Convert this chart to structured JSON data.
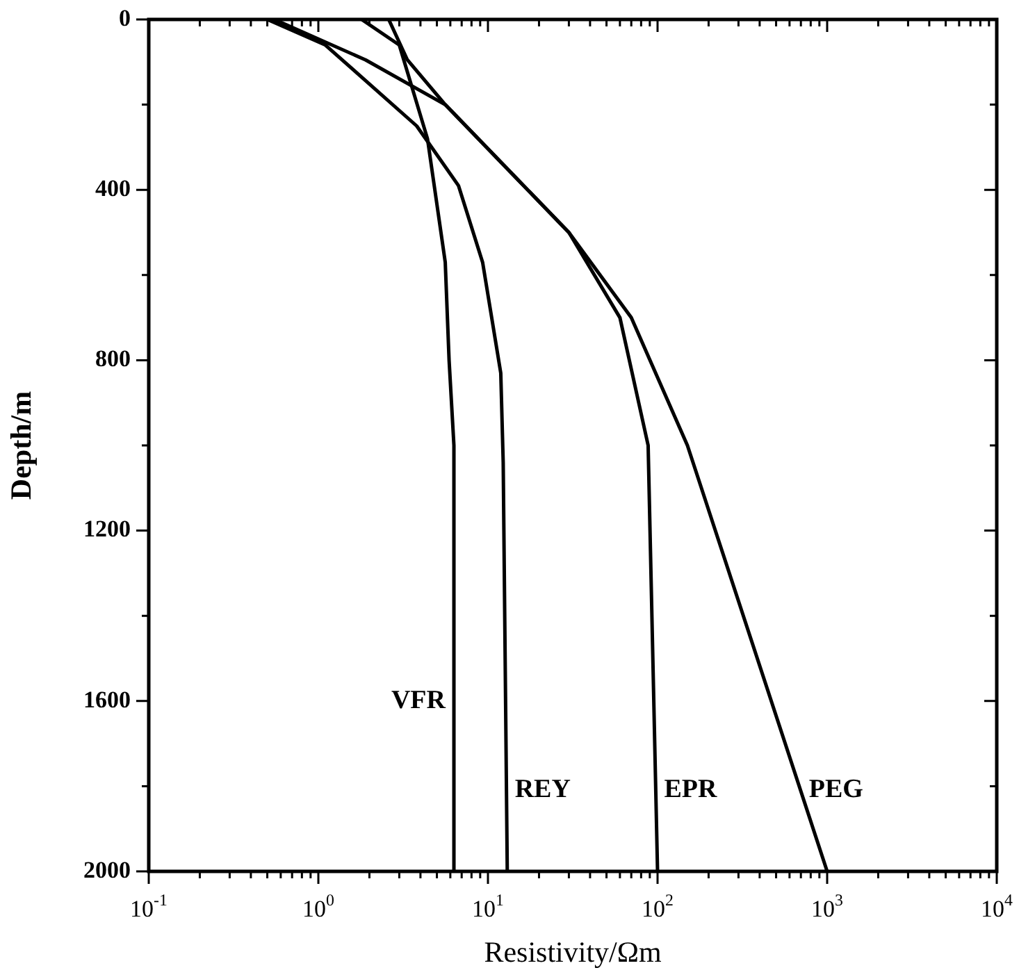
{
  "chart_data": {
    "type": "line",
    "xlabel": "Resistivity/Ωm",
    "ylabel": "Depth/m",
    "log": "x",
    "grid": false,
    "legend": false,
    "marker": "none",
    "line_style": "solid",
    "xlim": [
      0.1,
      10000
    ],
    "ylim": [
      2000,
      0
    ],
    "xticks": [
      {
        "value": 0.1,
        "label": "10$^{-1}$"
      },
      {
        "value": 0.2,
        "label": null
      },
      {
        "value": 0.3,
        "label": null
      },
      {
        "value": 0.4,
        "label": null
      },
      {
        "value": 0.5,
        "label": null
      },
      {
        "value": 0.6,
        "label": null
      },
      {
        "value": 0.7,
        "label": null
      },
      {
        "value": 0.8,
        "label": null
      },
      {
        "value": 0.9,
        "label": null
      },
      {
        "value": 1,
        "label": "10$^{0}$"
      },
      {
        "value": 2,
        "label": null
      },
      {
        "value": 3,
        "label": null
      },
      {
        "value": 4,
        "label": null
      },
      {
        "value": 5,
        "label": null
      },
      {
        "value": 6,
        "label": null
      },
      {
        "value": 7,
        "label": null
      },
      {
        "value": 8,
        "label": null
      },
      {
        "value": 9,
        "label": null
      },
      {
        "value": 10,
        "label": "10$^{1}$"
      },
      {
        "value": 20,
        "label": null
      },
      {
        "value": 30,
        "label": null
      },
      {
        "value": 40,
        "label": null
      },
      {
        "value": 50,
        "label": null
      },
      {
        "value": 60,
        "label": null
      },
      {
        "value": 70,
        "label": null
      },
      {
        "value": 80,
        "label": null
      },
      {
        "value": 90,
        "label": null
      },
      {
        "value": 100,
        "label": "10$^{2}$"
      },
      {
        "value": 200,
        "label": null
      },
      {
        "value": 300,
        "label": null
      },
      {
        "value": 400,
        "label": null
      },
      {
        "value": 500,
        "label": null
      },
      {
        "value": 600,
        "label": null
      },
      {
        "value": 700,
        "label": null
      },
      {
        "value": 800,
        "label": null
      },
      {
        "value": 900,
        "label": null
      },
      {
        "value": 1000,
        "label": "10$^{3}$"
      },
      {
        "value": 2000,
        "label": null
      },
      {
        "value": 3000,
        "label": null
      },
      {
        "value": 4000,
        "label": null
      },
      {
        "value": 5000,
        "label": null
      },
      {
        "value": 6000,
        "label": null
      },
      {
        "value": 7000,
        "label": null
      },
      {
        "value": 8000,
        "label": null
      },
      {
        "value": 9000,
        "label": null
      },
      {
        "value": 10000,
        "label": "10$^{4}$"
      }
    ],
    "yticks": [
      0,
      {
        "value": 200,
        "label": null
      },
      400,
      {
        "value": 600,
        "label": null
      },
      800,
      {
        "value": 1000,
        "label": null
      },
      1200,
      {
        "value": 1400,
        "label": null
      },
      1600,
      {
        "value": 1800,
        "label": null
      },
      2000
    ],
    "series": [
      {
        "name": "VFR",
        "color": "#000000",
        "x": [
          1.8,
          3.0,
          4.4,
          5.6,
          5.9,
          6.3,
          6.3
        ],
        "values": [
          0,
          60,
          280,
          570,
          800,
          1000,
          2000
        ]
      },
      {
        "name": "REY",
        "color": "#000000",
        "x": [
          0.5,
          1.1,
          3.8,
          6.7,
          9.3,
          11.9,
          12.3,
          13
        ],
        "values": [
          0,
          60,
          250,
          390,
          570,
          830,
          1040,
          2000
        ]
      },
      {
        "name": "EPR",
        "color": "#000000",
        "x": [
          2.6,
          3.35,
          5.6,
          30,
          60,
          88,
          100
        ],
        "values": [
          0,
          95,
          200,
          500,
          700,
          1000,
          2000
        ]
      },
      {
        "name": "PEG",
        "color": "#000000",
        "x": [
          0.55,
          1.9,
          5.6,
          30,
          70,
          150,
          1000
        ],
        "values": [
          0,
          95,
          200,
          500,
          700,
          1000,
          2000
        ]
      }
    ]
  }
}
